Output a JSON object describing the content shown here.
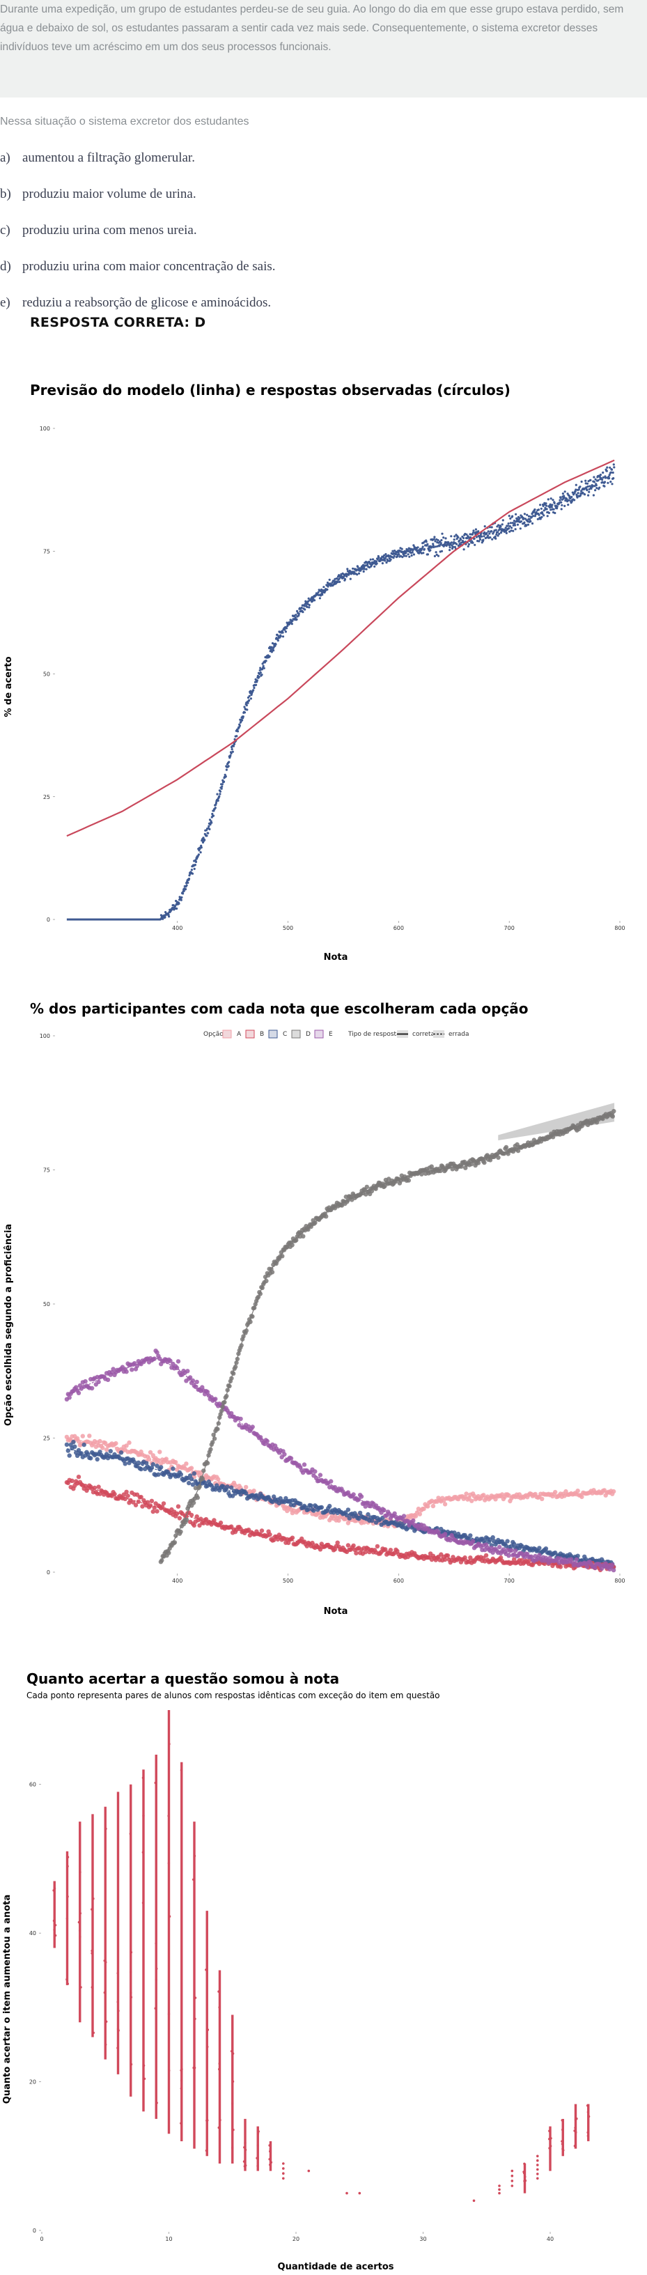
{
  "question": {
    "stem": "Durante uma expedição, um grupo de estudantes perdeu-se de seu guia. Ao longo do dia em que esse grupo estava perdido, sem água e debaixo de sol, os estudantes passaram a sentir cada vez mais sede. Consequentemente, o sistema excretor desses indivíduos teve um acréscimo em um dos seus processos funcionais.",
    "prompt": "Nessa situação o sistema excretor dos estudantes",
    "alternatives": [
      {
        "letter": "a)",
        "text": "aumentou a filtração glomerular."
      },
      {
        "letter": "b)",
        "text": "produziu maior volume de urina."
      },
      {
        "letter": "c)",
        "text": "produziu urina com menos ureia."
      },
      {
        "letter": "d)",
        "text": "produziu urina com maior concentração de sais."
      },
      {
        "letter": "e)",
        "text": "reduziu a reabsorção de glicose e aminoácidos."
      }
    ],
    "answer": "RESPOSTA CORRETA: D"
  },
  "colors": {
    "model_line": "#c9485b",
    "observed": "#3f5a92",
    "A": "#f2a0a8",
    "B": "#d1495b",
    "C": "#3f5a92",
    "D": "#7a7877",
    "E": "#9b59a8"
  },
  "chart_data": [
    {
      "type": "line",
      "title": "Previsão do modelo (linha) e respostas observadas (círculos)",
      "xlabel": "Nota",
      "ylabel": "% de acerto",
      "xlim": [
        290,
        800
      ],
      "ylim": [
        0,
        100
      ],
      "x_ticks": [
        400,
        500,
        600,
        700,
        800
      ],
      "y_ticks": [
        0,
        25,
        50,
        75,
        100
      ],
      "series": [
        {
          "role": "model",
          "x": [
            300,
            350,
            400,
            450,
            500,
            550,
            600,
            650,
            700,
            750,
            795
          ],
          "values": [
            17,
            22,
            28.5,
            36,
            45,
            55,
            65.5,
            75,
            83,
            89,
            93.5
          ]
        },
        {
          "role": "observed",
          "x": [
            300,
            340,
            385,
            400,
            410,
            420,
            430,
            440,
            450,
            460,
            470,
            480,
            490,
            500,
            520,
            540,
            560,
            580,
            600,
            630,
            660,
            690,
            720,
            750,
            780,
            795
          ],
          "values": [
            0,
            0,
            0,
            3,
            8,
            14,
            20,
            27,
            35,
            42,
            48,
            53,
            57,
            60,
            65,
            68.5,
            71,
            73,
            74.5,
            76,
            77,
            79,
            82,
            85.5,
            89,
            91
          ]
        }
      ]
    },
    {
      "type": "scatter",
      "title": "% dos participantes com cada nota que escolheram cada opção",
      "xlabel": "Nota",
      "ylabel": "Opção escolhida segundo a proficiência",
      "xlim": [
        290,
        800
      ],
      "ylim": [
        0,
        100
      ],
      "x_ticks": [
        400,
        500,
        600,
        700,
        800
      ],
      "y_ticks": [
        0,
        25,
        50,
        75,
        100
      ],
      "legend": {
        "title": "Opção",
        "items": [
          "A",
          "B",
          "C",
          "D",
          "E"
        ],
        "type_title": "Tipo de resposta",
        "type_items": [
          "correta",
          "errada"
        ],
        "placement": "top"
      },
      "series": [
        {
          "name": "A",
          "x": [
            300,
            350,
            400,
            450,
            500,
            550,
            600,
            630,
            650,
            700,
            750,
            795
          ],
          "values": [
            25,
            23,
            20,
            16,
            12,
            10,
            9,
            13,
            14,
            14,
            14.5,
            15
          ]
        },
        {
          "name": "B",
          "x": [
            300,
            350,
            400,
            450,
            500,
            550,
            600,
            650,
            700,
            750,
            795
          ],
          "values": [
            17,
            14,
            11,
            8,
            6,
            4.5,
            3.5,
            2.5,
            2,
            1.5,
            1
          ]
        },
        {
          "name": "C",
          "x": [
            300,
            350,
            400,
            450,
            500,
            550,
            600,
            650,
            700,
            750,
            795
          ],
          "values": [
            23,
            21,
            18,
            15,
            13,
            11,
            9,
            7,
            5,
            3,
            1.5
          ]
        },
        {
          "name": "D",
          "x": [
            385,
            400,
            420,
            440,
            460,
            480,
            500,
            540,
            580,
            620,
            660,
            700,
            740,
            795
          ],
          "values": [
            2,
            7,
            16,
            30,
            44,
            55,
            61,
            68,
            72,
            74.5,
            76,
            78.5,
            81.5,
            85.5
          ]
        },
        {
          "name": "E",
          "x": [
            300,
            340,
            380,
            400,
            450,
            500,
            550,
            600,
            650,
            700,
            750,
            795
          ],
          "values": [
            33,
            37,
            40,
            38,
            29,
            21,
            15,
            10,
            6,
            3.5,
            2,
            1
          ]
        }
      ]
    },
    {
      "type": "scatter",
      "title": "Quanto acertar a questão somou à nota",
      "subtitle": "Cada ponto representa pares de alunos com respostas idênticas com exceção do item em questão",
      "xlabel": "Quantidade de acertos",
      "ylabel": "Quanto acertar o item aumentou a anota",
      "xlim": [
        0,
        45
      ],
      "ylim": [
        0,
        70
      ],
      "x_ticks": [
        0,
        10,
        20,
        30,
        40
      ],
      "y_ticks": [
        0,
        20,
        40,
        60
      ],
      "columns": [
        {
          "x": 1,
          "min": 38,
          "max": 47
        },
        {
          "x": 2,
          "min": 33,
          "max": 51
        },
        {
          "x": 3,
          "min": 28,
          "max": 55
        },
        {
          "x": 4,
          "min": 26,
          "max": 56
        },
        {
          "x": 5,
          "min": 23,
          "max": 57
        },
        {
          "x": 6,
          "min": 21,
          "max": 59
        },
        {
          "x": 7,
          "min": 18,
          "max": 60
        },
        {
          "x": 8,
          "min": 16,
          "max": 62
        },
        {
          "x": 9,
          "min": 15,
          "max": 64
        },
        {
          "x": 10,
          "min": 13,
          "max": 70
        },
        {
          "x": 11,
          "min": 12,
          "max": 63
        },
        {
          "x": 12,
          "min": 11,
          "max": 55
        },
        {
          "x": 13,
          "min": 10,
          "max": 43
        },
        {
          "x": 14,
          "min": 9,
          "max": 35
        },
        {
          "x": 15,
          "min": 9,
          "max": 29
        },
        {
          "x": 16,
          "min": 8,
          "max": 15
        },
        {
          "x": 17,
          "min": 8,
          "max": 14
        },
        {
          "x": 18,
          "min": 8,
          "max": 12
        },
        {
          "x": 19,
          "min": 7,
          "max": 9
        },
        {
          "x": 21,
          "min": 8,
          "max": 8
        },
        {
          "x": 24,
          "min": 5,
          "max": 5
        },
        {
          "x": 25,
          "min": 5,
          "max": 5
        },
        {
          "x": 34,
          "min": 4,
          "max": 4
        },
        {
          "x": 36,
          "min": 5,
          "max": 6
        },
        {
          "x": 37,
          "min": 6,
          "max": 8
        },
        {
          "x": 38,
          "min": 5,
          "max": 9
        },
        {
          "x": 39,
          "min": 7,
          "max": 10
        },
        {
          "x": 40,
          "min": 8,
          "max": 14
        },
        {
          "x": 41,
          "min": 10,
          "max": 15
        },
        {
          "x": 42,
          "min": 11,
          "max": 17
        },
        {
          "x": 43,
          "min": 12,
          "max": 17
        }
      ]
    }
  ]
}
